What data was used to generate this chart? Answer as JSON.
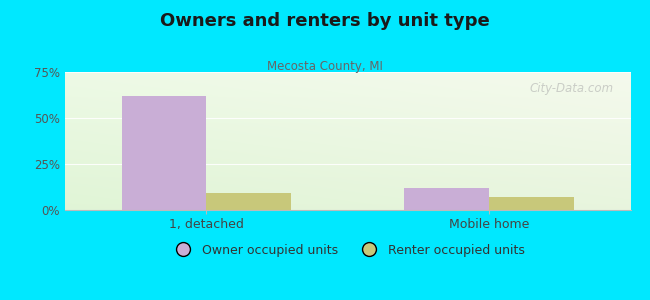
{
  "title": "Owners and renters by unit type",
  "subtitle": "Mecosta County, MI",
  "categories": [
    "1, detached",
    "Mobile home"
  ],
  "owner_values": [
    62.0,
    12.0
  ],
  "renter_values": [
    9.0,
    7.0
  ],
  "owner_color": "#c9aed6",
  "renter_color": "#c8c87a",
  "bar_width": 0.3,
  "ylim": [
    0,
    75
  ],
  "yticks": [
    0,
    25,
    50,
    75
  ],
  "ytick_labels": [
    "0%",
    "25%",
    "50%",
    "75%"
  ],
  "bg_color": "#00e8ff",
  "legend_owner": "Owner occupied units",
  "legend_renter": "Renter occupied units",
  "watermark": "City-Data.com"
}
